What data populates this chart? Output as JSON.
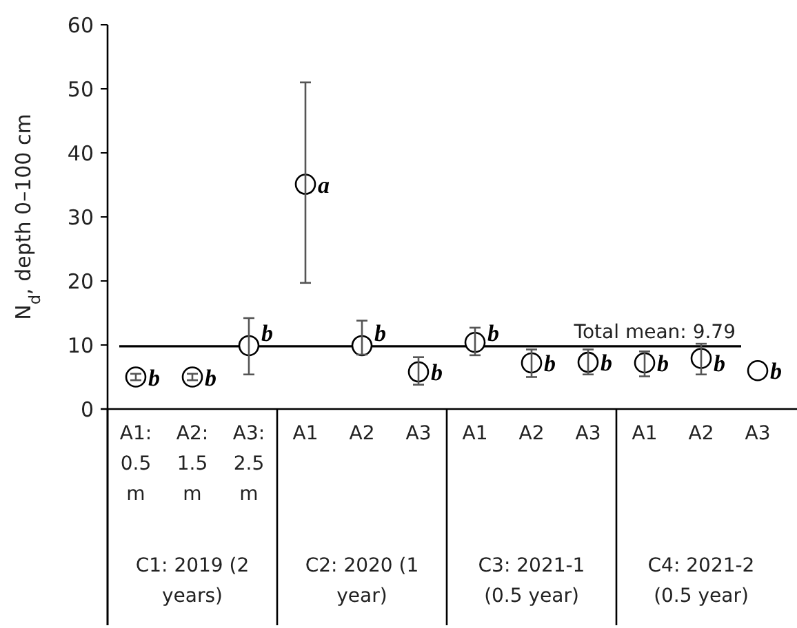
{
  "chart_data": {
    "type": "scatter",
    "ylabel": "N$_{d}$, depth 0–100 cm",
    "categories": [
      "A1: 0.5 m",
      "A2: 1.5 m",
      "A3: 2.5 m",
      "A1",
      "A2",
      "A3",
      "A1",
      "A2",
      "A3",
      "A1",
      "A2",
      "A3"
    ],
    "values": [
      5.0,
      5.0,
      9.9,
      35.1,
      9.9,
      5.8,
      10.4,
      7.2,
      7.3,
      7.2,
      7.9,
      6.0
    ],
    "errors": [
      0.5,
      0.5,
      [
        5.4,
        14.2
      ],
      [
        19.7,
        51
      ],
      [
        8.5,
        13.8
      ],
      [
        3.8,
        8.1
      ],
      [
        8.4,
        12.7
      ],
      [
        5.0,
        9.3
      ],
      [
        5.4,
        9.3
      ],
      [
        5.1,
        9.0
      ],
      [
        5.4,
        10.2
      ],
      null
    ],
    "value_labels": [
      "b",
      "b",
      "b",
      "a",
      "b",
      "b",
      "b",
      "b",
      "b",
      "b",
      "b",
      "b"
    ],
    "ylim": [
      0,
      60
    ],
    "yticks": [
      0,
      10,
      20,
      30,
      40,
      50,
      60
    ],
    "marker": "circle",
    "color": "#000000",
    "ref_lines": [
      {
        "axis": "y",
        "value": 9.79,
        "label": "Total mean: 9.79"
      }
    ],
    "annotations": [
      "C1: 2019 (2 years)",
      "C2: 2020 (1 year)",
      "C3: 2021-1 (0.5 year)",
      "C4: 2021-2 (0.5 year)"
    ]
  }
}
